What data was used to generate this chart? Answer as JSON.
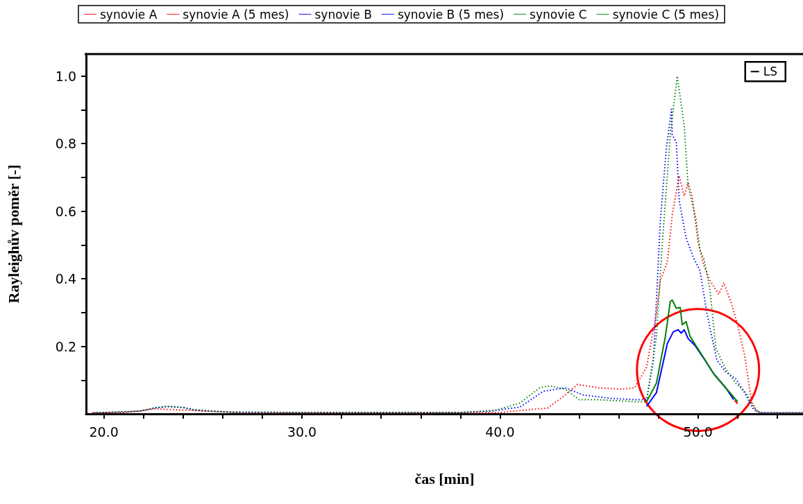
{
  "chart_data": {
    "type": "line",
    "xlabel": "čas [min]",
    "ylabel": "Rayleighův poměr [-]",
    "annotations": [
      "LS"
    ],
    "xlim": [
      19.1,
      55.3
    ],
    "ylim": [
      0,
      1.065
    ],
    "xticks": [
      {
        "value": 20,
        "label": "20.0"
      },
      {
        "value": 22,
        "label": null
      },
      {
        "value": 24,
        "label": null
      },
      {
        "value": 26,
        "label": null
      },
      {
        "value": 28,
        "label": null
      },
      {
        "value": 30,
        "label": "30.0"
      },
      {
        "value": 32,
        "label": null
      },
      {
        "value": 34,
        "label": null
      },
      {
        "value": 36,
        "label": null
      },
      {
        "value": 38,
        "label": null
      },
      {
        "value": 40,
        "label": "40.0"
      },
      {
        "value": 42,
        "label": null
      },
      {
        "value": 44,
        "label": null
      },
      {
        "value": 46,
        "label": null
      },
      {
        "value": 48,
        "label": null
      },
      {
        "value": 50,
        "label": "50.0"
      },
      {
        "value": 52,
        "label": null
      },
      {
        "value": 54,
        "label": null
      }
    ],
    "yticks": [
      {
        "value": 0.1,
        "label": null
      },
      0.2,
      {
        "value": 0.3,
        "label": null
      },
      0.4,
      {
        "value": 0.5,
        "label": null
      },
      0.6,
      {
        "value": 0.7,
        "label": null
      },
      0.8,
      {
        "value": 0.9,
        "label": null
      },
      {
        "value": 1,
        "label": "1.0"
      }
    ],
    "grid": false,
    "legend": "top",
    "marker": "none",
    "series": [
      {
        "name": "synovie A",
        "color": "#ff0000",
        "line_style": "solid",
        "x": [
          51.85,
          52.0
        ],
        "values": [
          0.04,
          0.03
        ]
      },
      {
        "name": "synovie A (5 mes)",
        "color": "#ff0000",
        "line_style": "dotted",
        "x": [
          19.4,
          21,
          22,
          22.6,
          23.2,
          24.5,
          26,
          27,
          35,
          40,
          41,
          42,
          42.4,
          43.3,
          43.9,
          45,
          46.2,
          46.8,
          47.4,
          47.9,
          48.1,
          48.45,
          48.7,
          49.05,
          49.3,
          49.5,
          49.7,
          50,
          50.3,
          50.6,
          51.05,
          51.3,
          51.65,
          52,
          52.35,
          52.7,
          52.95,
          53.3,
          55.3
        ],
        "values": [
          0.003,
          0.004,
          0.01,
          0.015,
          0.013,
          0.01,
          0.006,
          0.003,
          0.003,
          0.004,
          0.01,
          0.015,
          0.017,
          0.056,
          0.087,
          0.077,
          0.073,
          0.077,
          0.138,
          0.298,
          0.395,
          0.45,
          0.59,
          0.705,
          0.645,
          0.684,
          0.645,
          0.508,
          0.438,
          0.395,
          0.354,
          0.388,
          0.333,
          0.264,
          0.174,
          0.036,
          0.007,
          0.003,
          0.003
        ]
      },
      {
        "name": "synovie B",
        "color": "#0000ff",
        "line_style": "solid",
        "x": [
          47.4,
          47.9,
          48.45,
          48.75,
          49,
          49.15,
          49.3,
          49.5,
          49.85,
          50.35,
          50.8,
          51.4,
          51.8
        ],
        "values": [
          0.022,
          0.063,
          0.208,
          0.243,
          0.249,
          0.239,
          0.249,
          0.223,
          0.202,
          0.159,
          0.118,
          0.077,
          0.042
        ]
      },
      {
        "name": "synovie B (5 mes)",
        "color": "#0000ff",
        "line_style": "dotted",
        "x": [
          19.4,
          20.5,
          21.8,
          22.6,
          23.2,
          24,
          24.5,
          25.3,
          26.5,
          30,
          38,
          39.5,
          41,
          42.2,
          43.3,
          44.2,
          45.6,
          46.8,
          47.4,
          47.75,
          48.1,
          48.4,
          48.66,
          48.7,
          48.9,
          49.05,
          49.4,
          49.8,
          50.1,
          50.45,
          50.95,
          51.4,
          51.9,
          52.35,
          52.8,
          53.2,
          55.3
        ],
        "values": [
          0.003,
          0.005,
          0.008,
          0.018,
          0.022,
          0.019,
          0.012,
          0.008,
          0.005,
          0.004,
          0.004,
          0.008,
          0.02,
          0.067,
          0.077,
          0.056,
          0.046,
          0.042,
          0.042,
          0.159,
          0.575,
          0.785,
          0.902,
          0.826,
          0.805,
          0.631,
          0.52,
          0.458,
          0.424,
          0.298,
          0.159,
          0.124,
          0.104,
          0.063,
          0.013,
          0.003,
          0.003
        ]
      },
      {
        "name": "synovie C",
        "color": "#008000",
        "line_style": "solid",
        "x": [
          47.4,
          47.9,
          48.35,
          48.6,
          48.7,
          48.9,
          49.1,
          49.2,
          49.4,
          49.6,
          50.2,
          50.8,
          51.4,
          52
        ],
        "values": [
          0.036,
          0.091,
          0.229,
          0.333,
          0.337,
          0.313,
          0.315,
          0.264,
          0.273,
          0.229,
          0.174,
          0.118,
          0.077,
          0.036
        ]
      },
      {
        "name": "synovie C (5 mes)",
        "color": "#008000",
        "line_style": "dotted",
        "x": [
          19.4,
          20.5,
          21.8,
          22.6,
          23.2,
          24,
          24.5,
          25.3,
          26.5,
          30,
          38,
          39.8,
          41,
          42,
          42.5,
          43.3,
          44,
          45,
          46.8,
          47.4,
          47.9,
          48.2,
          48.6,
          48.95,
          49.3,
          49.5,
          49.9,
          50.1,
          50.3,
          50.6,
          50.9,
          51.4,
          51.9,
          52.4,
          52.8,
          53.1,
          55.3
        ],
        "values": [
          0.003,
          0.005,
          0.008,
          0.018,
          0.022,
          0.019,
          0.013,
          0.009,
          0.005,
          0.004,
          0.004,
          0.011,
          0.032,
          0.077,
          0.083,
          0.073,
          0.042,
          0.042,
          0.036,
          0.036,
          0.229,
          0.508,
          0.826,
          1.0,
          0.854,
          0.674,
          0.575,
          0.485,
          0.458,
          0.368,
          0.194,
          0.132,
          0.091,
          0.063,
          0.022,
          0.003,
          0.003
        ]
      }
    ]
  }
}
